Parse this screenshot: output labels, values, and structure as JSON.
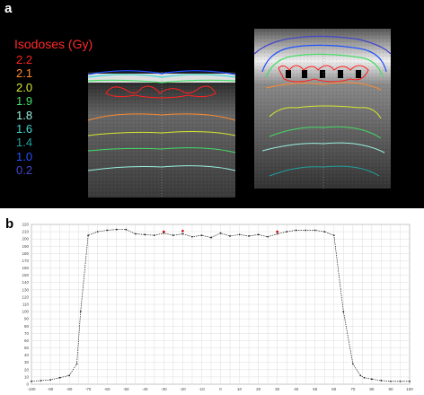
{
  "figure": {
    "panel_a_label": "a",
    "panel_b_label": "b"
  },
  "legend": {
    "title": "Isodoses (Gy)",
    "entries": [
      {
        "label": "2.2",
        "color": "#ff2020"
      },
      {
        "label": "2.1",
        "color": "#ff8a30"
      },
      {
        "label": "2.0",
        "color": "#d8e830"
      },
      {
        "label": "1.9",
        "color": "#44dd66"
      },
      {
        "label": "1.8",
        "color": "#99f0e0"
      },
      {
        "label": "1.6",
        "color": "#40d8d0"
      },
      {
        "label": "1.4",
        "color": "#20a0a0"
      },
      {
        "label": "1.0",
        "color": "#2050ff"
      },
      {
        "label": "0.2",
        "color": "#4444cc"
      }
    ]
  },
  "chart_data": {
    "type": "line",
    "xlim": [
      -100,
      100
    ],
    "ylim": [
      0,
      220
    ],
    "grid": true,
    "x_ticks": [
      -100,
      -95,
      -90,
      -85,
      -80,
      -75,
      -70,
      -65,
      -60,
      -55,
      -50,
      -45,
      -40,
      -35,
      -30,
      -25,
      -20,
      -15,
      -10,
      -5,
      0,
      5,
      10,
      15,
      20,
      25,
      30,
      35,
      40,
      45,
      50,
      55,
      60,
      65,
      70,
      75,
      80,
      85,
      90,
      95,
      100
    ],
    "x_tick_labels": [
      "-100",
      "",
      "-90",
      "",
      "-80",
      "",
      "-70",
      "",
      "-60",
      "",
      "-50",
      "",
      "-40",
      "",
      "-30",
      "",
      "-20",
      "",
      "-10",
      "",
      "0",
      "",
      "10",
      "",
      "20",
      "",
      "30",
      "",
      "40",
      "",
      "50",
      "",
      "60",
      "",
      "70",
      "",
      "80",
      "",
      "90",
      "",
      "100"
    ],
    "y_ticks": [
      0,
      10,
      20,
      30,
      40,
      50,
      60,
      70,
      80,
      90,
      100,
      110,
      120,
      130,
      140,
      150,
      160,
      170,
      180,
      190,
      200,
      210,
      220
    ],
    "y_tick_labels": [
      "0",
      "10",
      "20",
      "30",
      "40",
      "50",
      "60",
      "70",
      "80",
      "90",
      "100",
      "110",
      "120",
      "130",
      "140",
      "150",
      "160",
      "170",
      "180",
      "190",
      "200",
      "210",
      "220"
    ],
    "series": [
      {
        "x": [
          -100,
          -95,
          -90,
          -85,
          -80,
          -76,
          -74,
          -70,
          -65,
          -60,
          -55,
          -50,
          -45,
          -40,
          -35,
          -30,
          -25,
          -20,
          -15,
          -10,
          -5,
          0,
          5,
          10,
          15,
          20,
          25,
          30,
          35,
          40,
          45,
          50,
          55,
          60,
          65,
          70,
          74,
          76,
          80,
          85,
          90,
          95,
          100
        ],
        "y": [
          4,
          5,
          6,
          9,
          12,
          28,
          100,
          205,
          210,
          212,
          213,
          213,
          207,
          206,
          205,
          208,
          205,
          207,
          203,
          205,
          202,
          208,
          204,
          206,
          204,
          206,
          203,
          207,
          210,
          212,
          212,
          212,
          210,
          205,
          100,
          28,
          12,
          9,
          7,
          5,
          4,
          4,
          4
        ],
        "color": "#222222"
      }
    ],
    "highlight_points": {
      "x": [
        -30,
        -20,
        30
      ],
      "y": [
        210,
        211,
        210
      ],
      "color": "#cc0000"
    }
  }
}
